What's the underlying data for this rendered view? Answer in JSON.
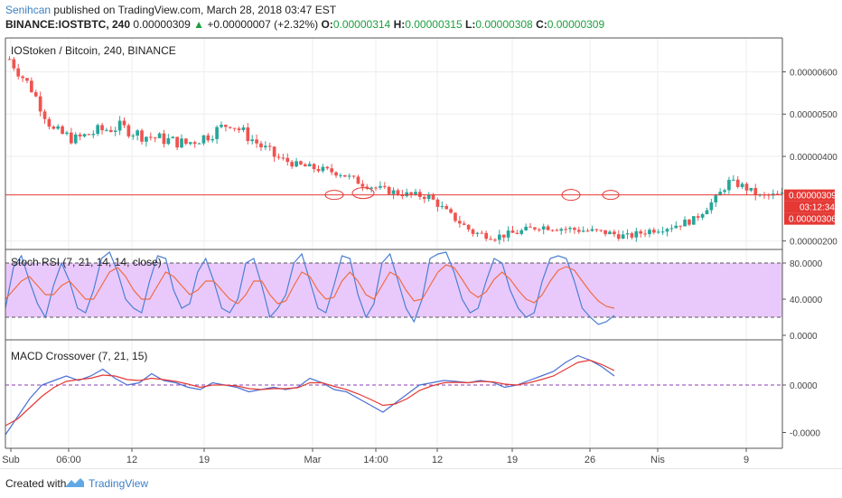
{
  "header": {
    "author": "Senihcan",
    "published": "published on TradingView.com, March 28, 2018 03:47 EST",
    "symbol": "BINANCE:IOSTBTC, 240",
    "price": "0.00000309",
    "change_arrow": "▲",
    "change": "+0.00000007 (+2.32%)",
    "o_label": "O:",
    "o": "0.00000314",
    "h_label": "H:",
    "h": "0.00000315",
    "l_label": "L:",
    "l": "0.00000308",
    "c_label": "C:",
    "c": "0.00000309"
  },
  "footer": {
    "created": "Created with",
    "brand": "TradingView"
  },
  "colors": {
    "up": "#26a69a",
    "down": "#ef5350",
    "price_line": "#e53935",
    "rsi_k": "#4a7fd4",
    "rsi_d": "#ef6c43",
    "rsi_band": "#e9c9fb",
    "macd": "#4a6fd4",
    "signal": "#e53935",
    "axis_text": "#444444"
  },
  "chart_data": [
    {
      "type": "candlestick",
      "title": "IOStoken / Bitcoin, 240, BINANCE",
      "y_ticks": [
        "0.00000600",
        "0.00000500",
        "0.00000400",
        "0.00000200"
      ],
      "ylim": [
        1.8e-06,
        6.8e-06
      ],
      "price_line": {
        "value": 3.09e-06,
        "label": "0.00000309"
      },
      "countdown_label": "03:12:34",
      "low_label": "0.00000306",
      "approx_close_path": [
        [
          0,
          6.3
        ],
        [
          5,
          5.6
        ],
        [
          10,
          4.6
        ],
        [
          15,
          4.4
        ],
        [
          20,
          4.6
        ],
        [
          25,
          4.7
        ],
        [
          30,
          4.5
        ],
        [
          35,
          4.4
        ],
        [
          40,
          4.3
        ],
        [
          45,
          4.5
        ],
        [
          50,
          4.8
        ],
        [
          55,
          4.4
        ],
        [
          60,
          4.0
        ],
        [
          65,
          3.8
        ],
        [
          70,
          3.7
        ],
        [
          75,
          3.6
        ],
        [
          80,
          3.35
        ],
        [
          85,
          3.2
        ],
        [
          90,
          3.1
        ],
        [
          95,
          3.05
        ],
        [
          100,
          2.6
        ],
        [
          105,
          2.2
        ],
        [
          110,
          2.1
        ],
        [
          115,
          2.2
        ],
        [
          120,
          2.35
        ],
        [
          125,
          2.3
        ],
        [
          130,
          2.25
        ],
        [
          135,
          2.2
        ],
        [
          140,
          2.1
        ],
        [
          145,
          2.25
        ],
        [
          150,
          2.35
        ],
        [
          155,
          2.5
        ],
        [
          160,
          3.0
        ],
        [
          163,
          3.4
        ],
        [
          166,
          3.3
        ],
        [
          170,
          3.05
        ],
        [
          175,
          3.09
        ]
      ],
      "x_ticks": [
        "Sub",
        "06:00",
        "12",
        "19",
        "Mar",
        "14:00",
        "12",
        "19",
        "26",
        "Nis",
        "9"
      ]
    },
    {
      "type": "line",
      "title": "Stoch RSI (7, 21, 14, 14, close)",
      "y_ticks": [
        "80.0000",
        "40.0000",
        "0.0000"
      ],
      "ylim": [
        -5,
        95
      ],
      "band": [
        20,
        80
      ],
      "series": [
        {
          "name": "K",
          "values": [
            30,
            75,
            88,
            60,
            35,
            20,
            55,
            80,
            60,
            30,
            25,
            50,
            85,
            92,
            70,
            40,
            30,
            25,
            60,
            88,
            85,
            50,
            30,
            35,
            70,
            85,
            60,
            30,
            25,
            40,
            80,
            85,
            55,
            20,
            30,
            45,
            80,
            90,
            60,
            30,
            25,
            55,
            88,
            85,
            45,
            20,
            35,
            80,
            90,
            60,
            30,
            15,
            40,
            85,
            90,
            92,
            70,
            40,
            25,
            30,
            60,
            85,
            80,
            50,
            30,
            20,
            25,
            60,
            85,
            88,
            85,
            60,
            30,
            20,
            12,
            15,
            22
          ]
        },
        {
          "name": "D",
          "values": [
            40,
            50,
            60,
            65,
            55,
            45,
            45,
            55,
            60,
            50,
            40,
            40,
            55,
            70,
            75,
            65,
            50,
            40,
            40,
            55,
            70,
            65,
            55,
            45,
            50,
            60,
            60,
            50,
            40,
            35,
            45,
            60,
            60,
            45,
            35,
            38,
            55,
            70,
            65,
            50,
            40,
            42,
            60,
            70,
            60,
            45,
            40,
            55,
            70,
            65,
            50,
            38,
            40,
            55,
            70,
            78,
            75,
            62,
            48,
            42,
            48,
            62,
            70,
            62,
            50,
            40,
            36,
            45,
            60,
            72,
            76,
            72,
            60,
            48,
            38,
            32,
            30
          ]
        }
      ]
    },
    {
      "type": "line",
      "title": "MACD Crossover (7, 21, 15)",
      "y_ticks": [
        "0.0000",
        "-0.0000"
      ],
      "ylim": [
        -1.4,
        1.0
      ],
      "series": [
        {
          "name": "MACD",
          "values": [
            -1.1,
            -0.7,
            -0.3,
            0.0,
            0.1,
            0.2,
            0.1,
            0.2,
            0.35,
            0.15,
            0.0,
            0.05,
            0.25,
            0.1,
            0.05,
            -0.05,
            -0.1,
            0.05,
            0.0,
            -0.05,
            -0.15,
            -0.1,
            -0.05,
            -0.1,
            -0.05,
            0.15,
            0.05,
            -0.1,
            -0.15,
            -0.3,
            -0.45,
            -0.6,
            -0.4,
            -0.2,
            0.0,
            0.05,
            0.1,
            0.08,
            0.05,
            0.1,
            0.06,
            -0.05,
            0.0,
            0.1,
            0.2,
            0.3,
            0.5,
            0.65,
            0.55,
            0.4,
            0.2
          ]
        },
        {
          "name": "Signal",
          "values": [
            -0.9,
            -0.75,
            -0.5,
            -0.25,
            -0.05,
            0.08,
            0.12,
            0.15,
            0.22,
            0.2,
            0.12,
            0.1,
            0.15,
            0.12,
            0.08,
            0.02,
            -0.05,
            0.0,
            0.0,
            -0.02,
            -0.08,
            -0.1,
            -0.08,
            -0.08,
            -0.06,
            0.05,
            0.05,
            -0.03,
            -0.1,
            -0.2,
            -0.32,
            -0.45,
            -0.42,
            -0.3,
            -0.12,
            -0.02,
            0.05,
            0.06,
            0.05,
            0.08,
            0.07,
            0.02,
            0.0,
            0.05,
            0.12,
            0.2,
            0.35,
            0.5,
            0.55,
            0.45,
            0.32
          ]
        }
      ]
    }
  ]
}
